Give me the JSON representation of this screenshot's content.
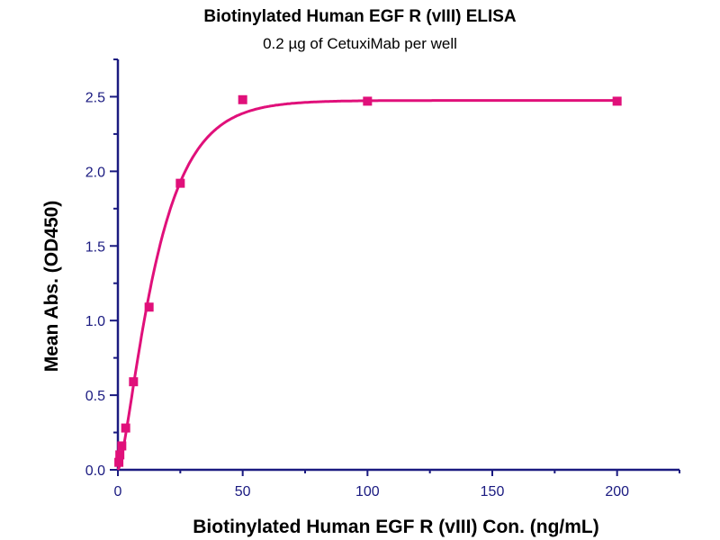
{
  "chart_data": {
    "type": "scatter",
    "title": "Biotinylated Human EGF R (vIII) ELISA",
    "subtitle": "0.2 µg of CetuxiMab per well",
    "xlabel": "Biotinylated Human EGF R (vIII) Con. (ng/mL)",
    "ylabel": "Mean Abs. (OD450)",
    "xlim": [
      0,
      225
    ],
    "ylim": [
      0,
      2.75
    ],
    "xticks": [
      0,
      50,
      100,
      150,
      200
    ],
    "xtick_labels": [
      "0",
      "50",
      "100",
      "150",
      "200"
    ],
    "yticks": [
      0,
      0.5,
      1.0,
      1.5,
      2.0,
      2.5
    ],
    "ytick_labels": [
      "0.0",
      "0.5",
      "1.0",
      "1.5",
      "2.0",
      "2.5"
    ],
    "grid": false,
    "series": [
      {
        "name": "Mean Abs.",
        "color": "#e0107a",
        "x": [
          0.39,
          0.78,
          1.56,
          3.125,
          6.25,
          12.5,
          25,
          50,
          100,
          200
        ],
        "y": [
          0.05,
          0.1,
          0.16,
          0.28,
          0.59,
          1.09,
          1.92,
          2.48,
          2.47,
          2.47
        ]
      }
    ],
    "fit": {
      "type": "curve",
      "color": "#e0107a",
      "top": 2.475,
      "k": 0.075,
      "n": 1.5
    }
  }
}
